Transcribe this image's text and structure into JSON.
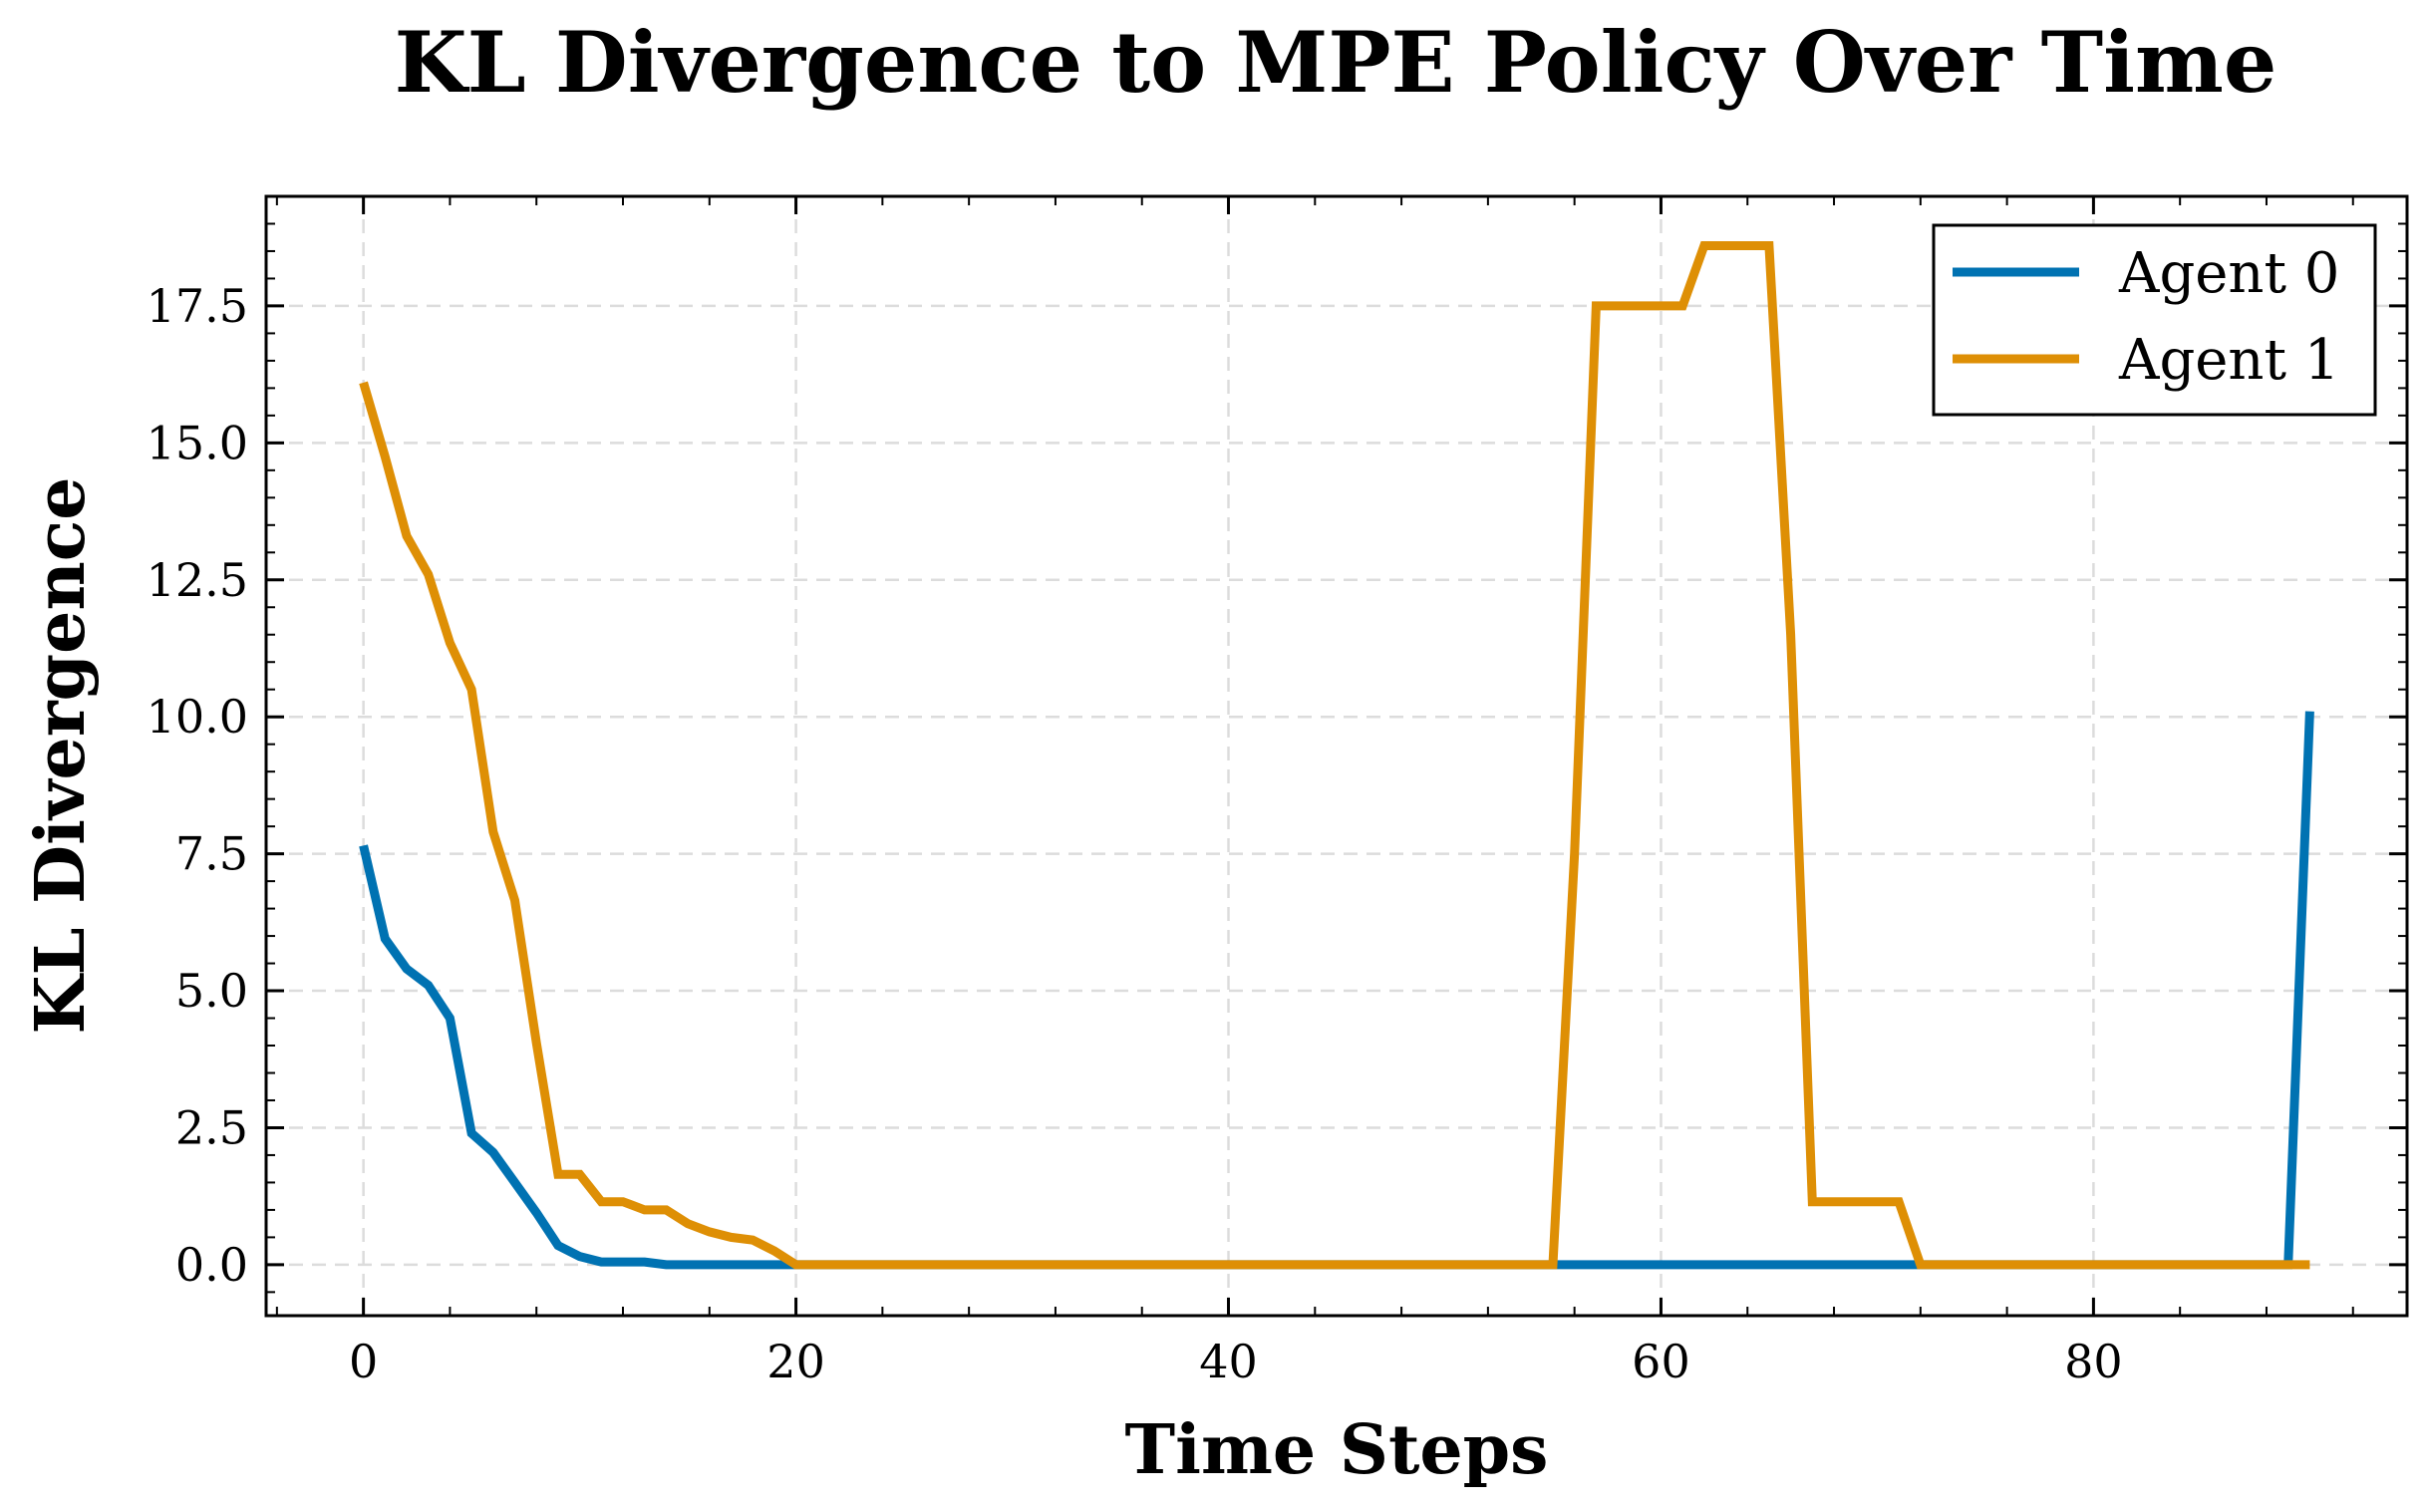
{
  "chart_data": {
    "type": "line",
    "title": "KL Divergence to MPE Policy Over Time",
    "xlabel": "Time Steps",
    "ylabel": "KL Divergence",
    "xlim": [
      -4.5,
      94.5
    ],
    "ylim": [
      -0.93,
      19.5
    ],
    "xticks": [
      0,
      20,
      40,
      60,
      80
    ],
    "xtick_labels": [
      "0",
      "20",
      "40",
      "60",
      "80"
    ],
    "yticks": [
      0,
      2.5,
      5,
      7.5,
      10,
      12.5,
      15,
      17.5
    ],
    "ytick_labels": [
      "0.0",
      "2.5",
      "5.0",
      "7.5",
      "10.0",
      "12.5",
      "15.0",
      "17.5"
    ],
    "grid": true,
    "legend_position": "top-right",
    "series": [
      {
        "name": "Agent 0",
        "color": "#0072b2",
        "x": [
          0,
          1,
          2,
          3,
          4,
          5,
          6,
          7,
          8,
          9,
          10,
          11,
          12,
          13,
          14,
          15,
          16,
          17,
          18,
          19,
          20,
          21,
          22,
          23,
          24,
          25,
          26,
          27,
          28,
          29,
          30,
          31,
          32,
          33,
          34,
          35,
          36,
          37,
          38,
          39,
          40,
          41,
          42,
          43,
          44,
          45,
          46,
          47,
          48,
          49,
          50,
          51,
          52,
          53,
          54,
          55,
          56,
          57,
          58,
          59,
          60,
          61,
          62,
          63,
          64,
          65,
          66,
          67,
          68,
          69,
          70,
          71,
          72,
          73,
          74,
          75,
          76,
          77,
          78,
          79,
          80,
          81,
          82,
          83,
          84,
          85,
          86,
          87,
          88,
          89,
          90
        ],
        "values": [
          7.65,
          5.95,
          5.4,
          5.1,
          4.5,
          2.4,
          2.05,
          1.5,
          0.95,
          0.35,
          0.15,
          0.05,
          0.05,
          0.05,
          0,
          0,
          0,
          0,
          0,
          0,
          0,
          0,
          0,
          0,
          0,
          0,
          0,
          0,
          0,
          0,
          0,
          0,
          0,
          0,
          0,
          0,
          0,
          0,
          0,
          0,
          0,
          0,
          0,
          0,
          0,
          0,
          0,
          0,
          0,
          0,
          0,
          0,
          0,
          0,
          0,
          0,
          0,
          0,
          0,
          0,
          0,
          0,
          0,
          0,
          0,
          0,
          0,
          0,
          0,
          0,
          0,
          0,
          0,
          0,
          0,
          0,
          0,
          0,
          0,
          0,
          0,
          0,
          0,
          0,
          0,
          0,
          0,
          0,
          0,
          0,
          10.1
        ]
      },
      {
        "name": "Agent 1",
        "color": "#de8f05",
        "x": [
          0,
          1,
          2,
          3,
          4,
          5,
          6,
          7,
          8,
          9,
          10,
          11,
          12,
          13,
          14,
          15,
          16,
          17,
          18,
          19,
          20,
          21,
          22,
          23,
          24,
          25,
          26,
          27,
          28,
          29,
          30,
          31,
          32,
          33,
          34,
          35,
          36,
          37,
          38,
          39,
          40,
          41,
          42,
          43,
          44,
          45,
          46,
          47,
          48,
          49,
          50,
          51,
          52,
          53,
          54,
          55,
          56,
          57,
          58,
          59,
          60,
          61,
          62,
          63,
          64,
          65,
          66,
          67,
          68,
          69,
          70,
          71,
          72,
          73,
          74,
          75,
          76,
          77,
          78,
          79,
          80,
          81,
          82,
          83,
          84,
          85,
          86,
          87,
          88,
          89,
          90
        ],
        "values": [
          16.1,
          14.75,
          13.3,
          12.6,
          11.35,
          10.5,
          7.9,
          6.65,
          4.05,
          1.65,
          1.65,
          1.15,
          1.15,
          1.0,
          1.0,
          0.75,
          0.6,
          0.5,
          0.45,
          0.25,
          0,
          0,
          0,
          0,
          0,
          0,
          0,
          0,
          0,
          0,
          0,
          0,
          0,
          0,
          0,
          0,
          0,
          0,
          0,
          0,
          0,
          0,
          0,
          0,
          0,
          0,
          0,
          0,
          0,
          0,
          0,
          0,
          0,
          0,
          0,
          0,
          7.5,
          17.5,
          17.5,
          17.5,
          17.5,
          17.5,
          18.6,
          18.6,
          18.6,
          18.6,
          11.5,
          1.15,
          1.15,
          1.15,
          1.15,
          1.15,
          0,
          0,
          0,
          0,
          0,
          0,
          0,
          0,
          0,
          0,
          0,
          0,
          0,
          0,
          0,
          0,
          0,
          0,
          0
        ]
      }
    ]
  }
}
